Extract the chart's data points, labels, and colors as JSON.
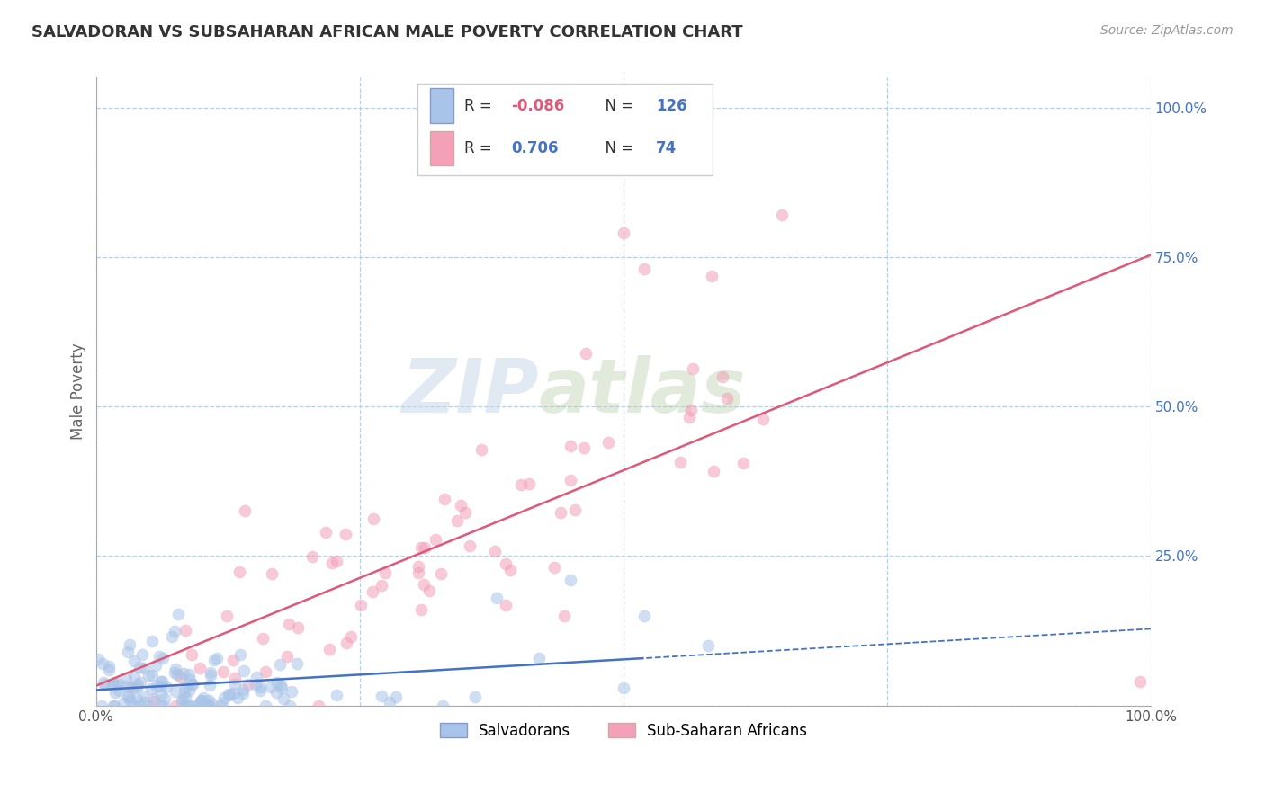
{
  "title": "SALVADORAN VS SUBSAHARAN AFRICAN MALE POVERTY CORRELATION CHART",
  "source": "Source: ZipAtlas.com",
  "ylabel": "Male Poverty",
  "xlim": [
    0.0,
    1.0
  ],
  "ylim": [
    0.0,
    1.05
  ],
  "salvadoran_color": "#a8c4e8",
  "subsaharan_color": "#f4a0b8",
  "sal_line_color": "#4472c4",
  "sub_line_color": "#e05878",
  "salvadoran_R": -0.086,
  "salvadoran_N": 126,
  "subsaharan_R": 0.706,
  "subsaharan_N": 74,
  "legend_labels": [
    "Salvadorans",
    "Sub-Saharan Africans"
  ],
  "watermark_zip": "ZIP",
  "watermark_atlas": "atlas",
  "background_color": "#ffffff",
  "grid_color": "#b8cfe8",
  "title_fontsize": 13,
  "source_fontsize": 10,
  "scatter_alpha": 0.55,
  "scatter_size": 90,
  "seed": 42
}
